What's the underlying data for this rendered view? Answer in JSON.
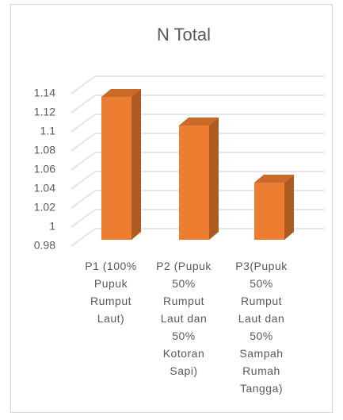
{
  "chart_data": {
    "type": "bar3d",
    "title": "N Total",
    "categories": [
      "P1 (100% Pupuk Rumput Laut)",
      "P2 (Pupuk 50% Rumput Laut dan 50% Kotoran Sapi)",
      "P3(Pupuk 50% Rumput Laut dan 50% Sampah Rumah Tangga)"
    ],
    "values": [
      1.13,
      1.1,
      1.04
    ],
    "color": "#ed7d31",
    "ylim": [
      0.98,
      1.14
    ],
    "yticks": [
      0.98,
      1,
      1.02,
      1.04,
      1.06,
      1.08,
      1.1,
      1.12,
      1.14
    ],
    "grid": true
  }
}
